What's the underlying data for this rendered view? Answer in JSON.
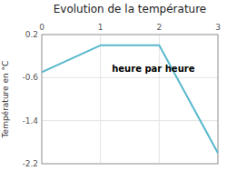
{
  "chart_data": {
    "type": "line",
    "title": "Evolution de la température",
    "y_label": "Température en °C",
    "annotations": [
      {
        "text": "heure par heure",
        "x": 1.9,
        "y": -0.45
      }
    ],
    "x": [
      0,
      1,
      2,
      3
    ],
    "values": [
      -0.5,
      0.0,
      0.0,
      -2.0
    ],
    "color": "#5ab8cc",
    "xlim": [
      0,
      3
    ],
    "ylim": [
      -2.2,
      0.2
    ],
    "xticks": [
      0,
      1,
      2,
      3
    ],
    "yticks": [
      0.2,
      -0.6,
      -1.4,
      -2.2
    ],
    "grid": true
  }
}
